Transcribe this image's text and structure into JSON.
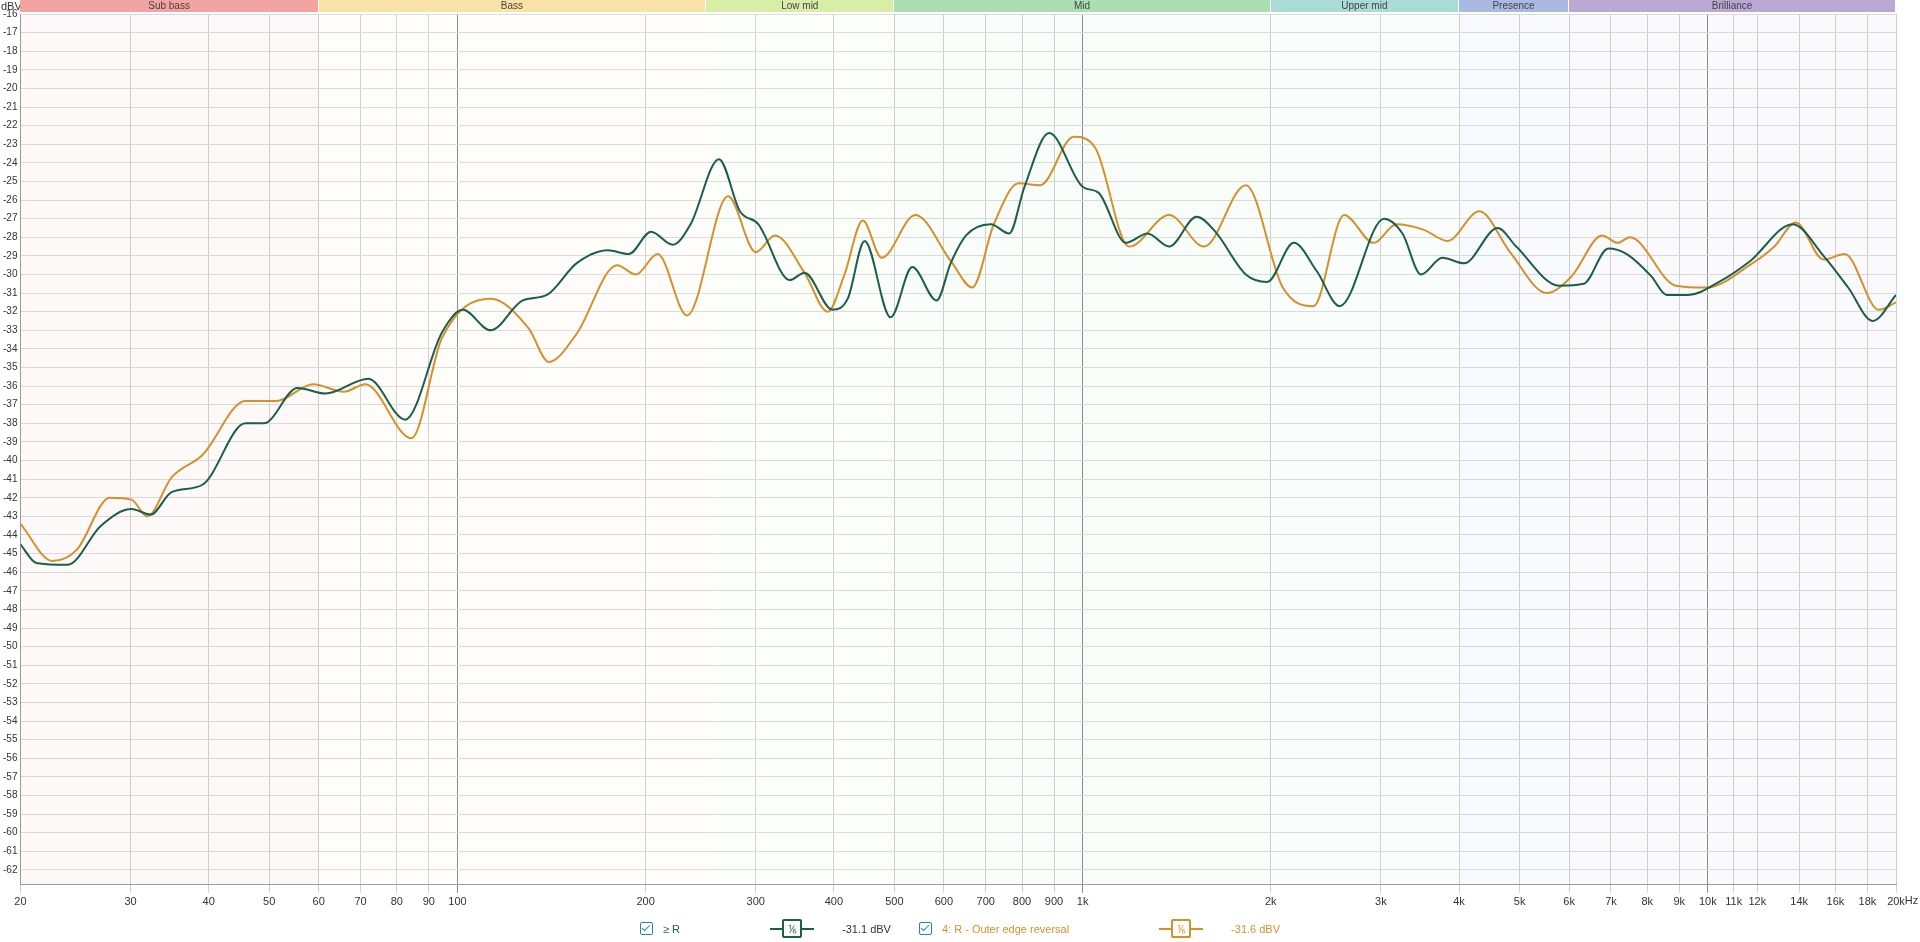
{
  "chart_data": {
    "type": "line",
    "ylabel": "dBV",
    "log": "x",
    "xlim": [
      20,
      20000
    ],
    "ylim": [
      -62.8,
      -16
    ],
    "xticks": [
      20,
      30,
      40,
      50,
      60,
      70,
      80,
      90,
      100,
      200,
      300,
      400,
      500,
      600,
      700,
      800,
      900,
      {
        "value": 1000,
        "label": "1k"
      },
      {
        "value": 2000,
        "label": "2k"
      },
      {
        "value": 3000,
        "label": "3k"
      },
      {
        "value": 4000,
        "label": "4k"
      },
      {
        "value": 5000,
        "label": "5k"
      },
      {
        "value": 6000,
        "label": "6k"
      },
      {
        "value": 7000,
        "label": "7k"
      },
      {
        "value": 8000,
        "label": "8k"
      },
      {
        "value": 9000,
        "label": "9k"
      },
      {
        "value": 10000,
        "label": "10k"
      },
      {
        "value": 11000,
        "label": "11k"
      },
      {
        "value": 12000,
        "label": "12k"
      },
      {
        "value": 14000,
        "label": "14k"
      },
      {
        "value": 16000,
        "label": "16k"
      },
      {
        "value": 18000,
        "label": "18k"
      },
      {
        "value": 20000,
        "label": "20k"
      }
    ],
    "xlabel": "Hz",
    "yticks": [
      -62,
      -61,
      -60,
      -59,
      -58,
      -57,
      -56,
      -55,
      -54,
      -53,
      -52,
      -51,
      -50,
      -49,
      -48,
      -47,
      -46,
      -45,
      -44,
      -43,
      -42,
      -41,
      -40,
      -39,
      -38,
      -37,
      -36,
      -35,
      -34,
      -33,
      -32,
      -31,
      -30,
      -29,
      -28,
      -27,
      -26,
      -25,
      -24,
      -23,
      -22,
      -21,
      -20,
      -19,
      -18,
      -17,
      -16
    ],
    "grid": true,
    "legend": "bottom",
    "marker": "none",
    "line_style": "solid",
    "series": [
      {
        "name": "≥ R",
        "color": "#1b5e4b",
        "x": [
          20,
          21.2,
          23.8,
          26.9,
          30.1,
          32.3,
          34.9,
          39.1,
          45.8,
          49,
          55.5,
          61.5,
          72,
          82.5,
          94.5,
          102,
          113,
          127,
          139,
          155,
          174,
          188,
          204,
          221,
          236,
          262,
          283,
          303,
          340,
          359,
          398,
          421,
          448,
          493,
          534,
          584,
          615,
          651,
          713,
          763,
          807,
          884,
          1001,
          1060,
          1173,
          1270,
          1375,
          1522,
          1630,
          1824,
          1974,
          2176,
          2367,
          2578,
          3035,
          3248,
          3477,
          3762,
          4073,
          4613,
          4938,
          5783,
          6334,
          6931,
          7419,
          8124,
          8594,
          9305,
          10421,
          11666,
          13673,
          15315,
          16769,
          18359,
          20000
        ],
        "values": [
          -44.5,
          -45.5,
          -45.6,
          -43.5,
          -42.6,
          -42.9,
          -41.7,
          -41.3,
          -38,
          -38,
          -36.1,
          -36.4,
          -35.6,
          -37.8,
          -33.1,
          -31.9,
          -33,
          -31.4,
          -31.1,
          -29.4,
          -28.7,
          -28.9,
          -27.7,
          -28.4,
          -27.3,
          -23.8,
          -26.6,
          -27.3,
          -30.3,
          -29.9,
          -31.9,
          -31.3,
          -28.2,
          -32.3,
          -29.6,
          -31.4,
          -29.4,
          -27.9,
          -27.3,
          -27.8,
          -25.3,
          -22.4,
          -25.3,
          -25.6,
          -28.3,
          -27.8,
          -28.5,
          -26.9,
          -27.7,
          -30,
          -30.4,
          -28.3,
          -29.8,
          -31.7,
          -27,
          -27.8,
          -30,
          -29.1,
          -29.4,
          -27.5,
          -28.5,
          -30.6,
          -30.5,
          -28.6,
          -28.9,
          -30.1,
          -31.1,
          -31.1,
          -30.4,
          -29.3,
          -27.3,
          -29,
          -30.7,
          -32.5,
          -31.1
        ]
      },
      {
        "name": "4: R - Outer edge reversal",
        "color": "#d4912b",
        "x": [
          20,
          22.5,
          24.6,
          27.8,
          30.1,
          31.9,
          34.9,
          39.1,
          45.8,
          51.3,
          58.8,
          65.8,
          71.2,
          84.4,
          94.5,
          113,
          130,
          140,
          155,
          180,
          193,
          209,
          233,
          271,
          300,
          322,
          359,
          391,
          416,
          445,
          477,
          540,
          616,
          666,
          721,
          790,
          855,
          968,
          1048,
          1187,
          1375,
          1564,
          1824,
          2090,
          2340,
          2620,
          2921,
          3176,
          3516,
          3832,
          4311,
          4827,
          5528,
          6054,
          6779,
          7172,
          7504,
          8890,
          9959,
          11666,
          12775,
          13829,
          15315,
          16556,
          18781,
          20000
        ],
        "values": [
          -43.4,
          -45.4,
          -44.8,
          -42,
          -42.1,
          -43,
          -40.9,
          -39.7,
          -36.8,
          -36.8,
          -35.9,
          -36.3,
          -35.9,
          -38.8,
          -33.4,
          -31.3,
          -32.9,
          -34.7,
          -33.2,
          -29.5,
          -30,
          -28.9,
          -32.2,
          -25.8,
          -28.8,
          -27.9,
          -29.9,
          -32,
          -30,
          -27.1,
          -29.1,
          -26.8,
          -29.3,
          -30.7,
          -27.3,
          -25.1,
          -25.2,
          -22.6,
          -23.2,
          -28.5,
          -26.8,
          -28.5,
          -25.2,
          -30.7,
          -31.7,
          -26.8,
          -28.3,
          -27.3,
          -27.6,
          -28.2,
          -26.6,
          -28.8,
          -31,
          -30.1,
          -27.9,
          -28.3,
          -28,
          -30.6,
          -30.7,
          -29.5,
          -28.5,
          -27.2,
          -29.2,
          -28.9,
          -31.9,
          -31.5
        ]
      }
    ],
    "bands": [
      {
        "axis": "x",
        "from": 20,
        "to": 60,
        "label": "Sub bass",
        "color": "#f4a3a3"
      },
      {
        "axis": "x",
        "from": 60,
        "to": 250,
        "label": "Bass",
        "color": "#fbe3a6"
      },
      {
        "axis": "x",
        "from": 250,
        "to": 500,
        "label": "Low mid",
        "color": "#d8eda6"
      },
      {
        "axis": "x",
        "from": 500,
        "to": 2000,
        "label": "Mid",
        "color": "#abdfb1"
      },
      {
        "axis": "x",
        "from": 2000,
        "to": 4000,
        "label": "Upper mid",
        "color": "#a9dcd6"
      },
      {
        "axis": "x",
        "from": 4000,
        "to": 6000,
        "label": "Presence",
        "color": "#a9b9e2"
      },
      {
        "axis": "x",
        "from": 6000,
        "to": 20000,
        "label": "Brilliance",
        "color": "#b9a9d2"
      }
    ],
    "annotations": [
      "⅙",
      "-31.1 dBV",
      "⅙",
      "-31.6 dBV"
    ]
  }
}
